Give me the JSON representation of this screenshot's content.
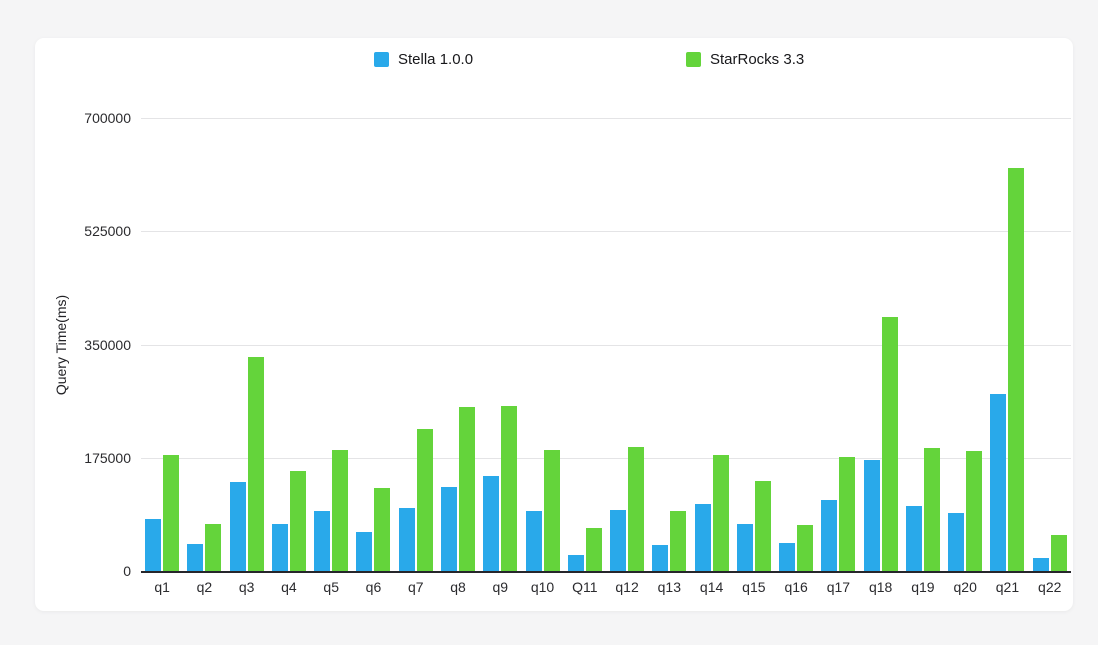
{
  "page": {
    "background_color": "#f5f5f6",
    "card_color": "#ffffff"
  },
  "legend": [
    {
      "label": "Stella 1.0.0",
      "color": "#29a9ea"
    },
    {
      "label": "StarRocks 3.3",
      "color": "#64d43b"
    }
  ],
  "chart_data": {
    "type": "bar",
    "title": "",
    "xlabel": "",
    "ylabel": "Query Time(ms)",
    "ylim": [
      0,
      700000
    ],
    "yticks": [
      0,
      175000,
      350000,
      525000,
      700000
    ],
    "grid": true,
    "legend_position": "top",
    "categories": [
      "q1",
      "q2",
      "q3",
      "q4",
      "q5",
      "q6",
      "q7",
      "q8",
      "q9",
      "q10",
      "Q11",
      "q12",
      "q13",
      "q14",
      "q15",
      "q16",
      "q17",
      "q18",
      "q19",
      "q20",
      "q21",
      "q22"
    ],
    "series": [
      {
        "name": "Stella 1.0.0",
        "color": "#29a9ea",
        "values": [
          80000,
          42000,
          138000,
          73000,
          92000,
          61000,
          98000,
          130000,
          147000,
          92000,
          25000,
          95000,
          40000,
          103000,
          72000,
          43000,
          110000,
          171000,
          100000,
          89000,
          274000,
          20000
        ]
      },
      {
        "name": "StarRocks 3.3",
        "color": "#64d43b",
        "values": [
          180000,
          72000,
          330000,
          155000,
          187000,
          128000,
          220000,
          253000,
          255000,
          187000,
          66000,
          191000,
          92000,
          179000,
          139000,
          71000,
          176000,
          392000,
          190000,
          185000,
          622000,
          55000
        ]
      }
    ]
  }
}
